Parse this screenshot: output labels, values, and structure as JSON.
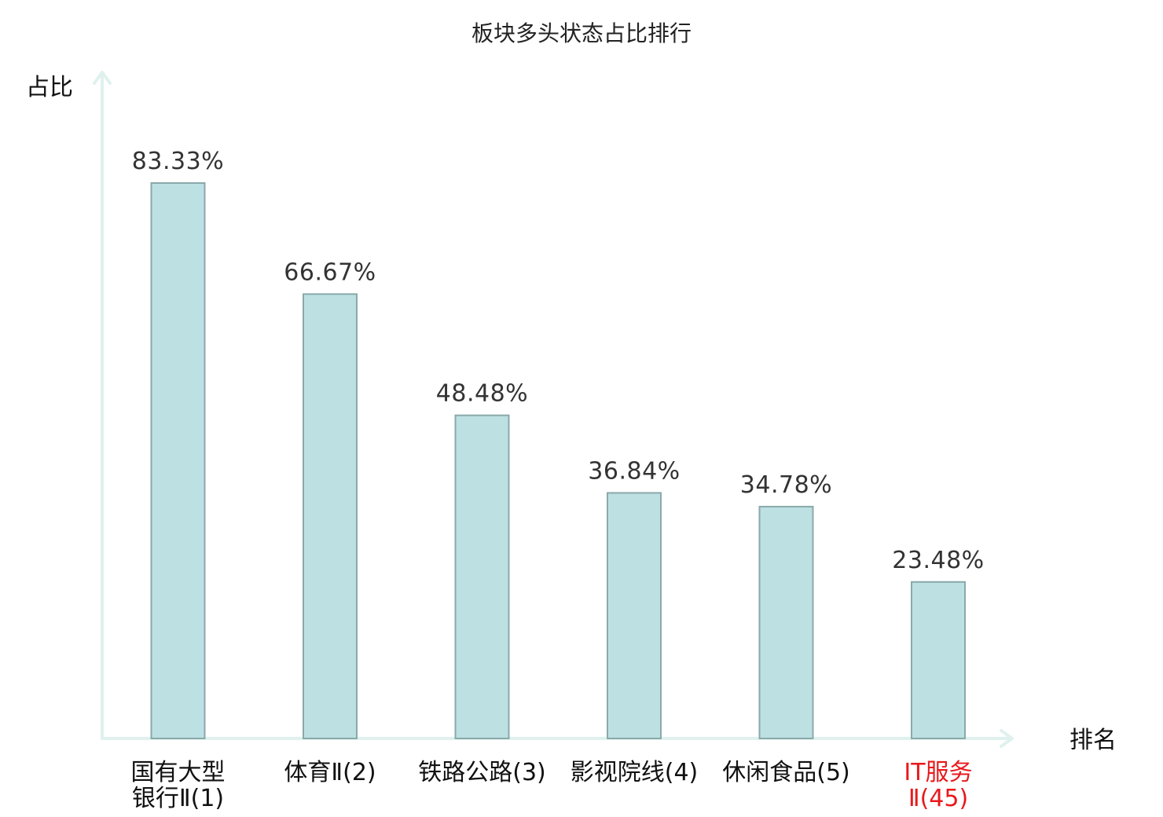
{
  "chart_data": {
    "type": "bar",
    "title": "板块多头状态占比排行",
    "ylabel": "占比",
    "xlabel": "排名",
    "categories": [
      [
        "国有大型",
        "银行Ⅱ(1)"
      ],
      [
        "体育Ⅱ(2)"
      ],
      [
        "铁路公路(3)"
      ],
      [
        "影视院线(4)"
      ],
      [
        "休闲食品(5)"
      ],
      [
        "IT服务",
        "Ⅱ(45)"
      ]
    ],
    "values": [
      83.33,
      66.67,
      48.48,
      36.84,
      34.78,
      23.48
    ],
    "value_labels": [
      "83.33%",
      "66.67%",
      "48.48%",
      "36.84%",
      "34.78%",
      "23.48%"
    ],
    "highlight_index": 5,
    "ylim": [
      0,
      100
    ],
    "grid": false,
    "colors": {
      "bar_fill": "#bde0e3",
      "bar_stroke": "#8aa9ab",
      "axis": "#dff1ee",
      "highlight_text": "#e8191c"
    }
  }
}
